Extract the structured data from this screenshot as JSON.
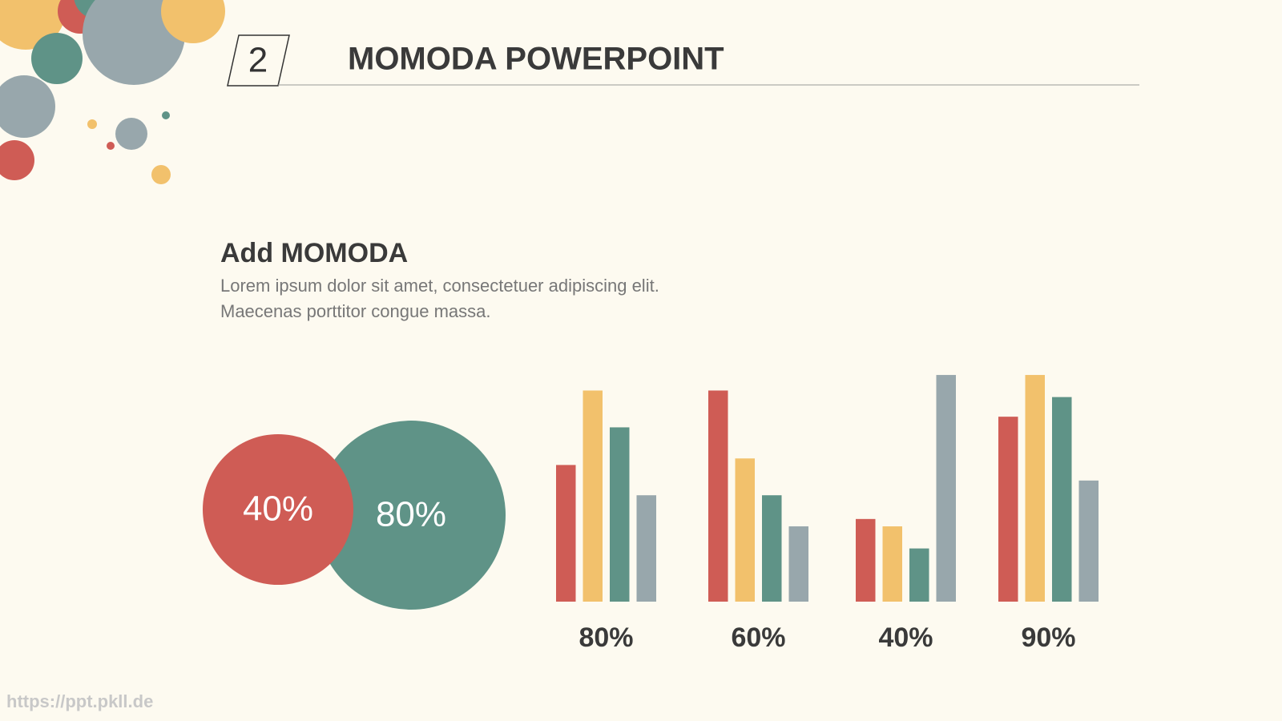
{
  "header": {
    "number": "2",
    "title": "MOMODA POWERPOINT"
  },
  "section": {
    "heading": "Add MOMODA",
    "lines": [
      "Lorem ipsum dolor sit amet, consectetuer adipiscing elit.",
      "Maecenas porttitor congue massa."
    ]
  },
  "circles": [
    {
      "label": "40%",
      "color": "#cf5c55"
    },
    {
      "label": "80%",
      "color": "#5f9387"
    }
  ],
  "chart_data": {
    "type": "bar",
    "categories": [
      "80%",
      "60%",
      "40%",
      "90%"
    ],
    "ylim": [
      0,
      280
    ],
    "series": [
      {
        "color": "#cf5c55",
        "values": [
          167,
          258,
          101,
          226
        ]
      },
      {
        "color": "#f2c16c",
        "values": [
          258,
          175,
          92,
          277
        ]
      },
      {
        "color": "#5f9387",
        "values": [
          213,
          130,
          65,
          250
        ]
      },
      {
        "color": "#98a7ac",
        "values": [
          130,
          92,
          277,
          148
        ]
      }
    ]
  },
  "footer": {
    "url": "https://ppt.pkll.de"
  }
}
